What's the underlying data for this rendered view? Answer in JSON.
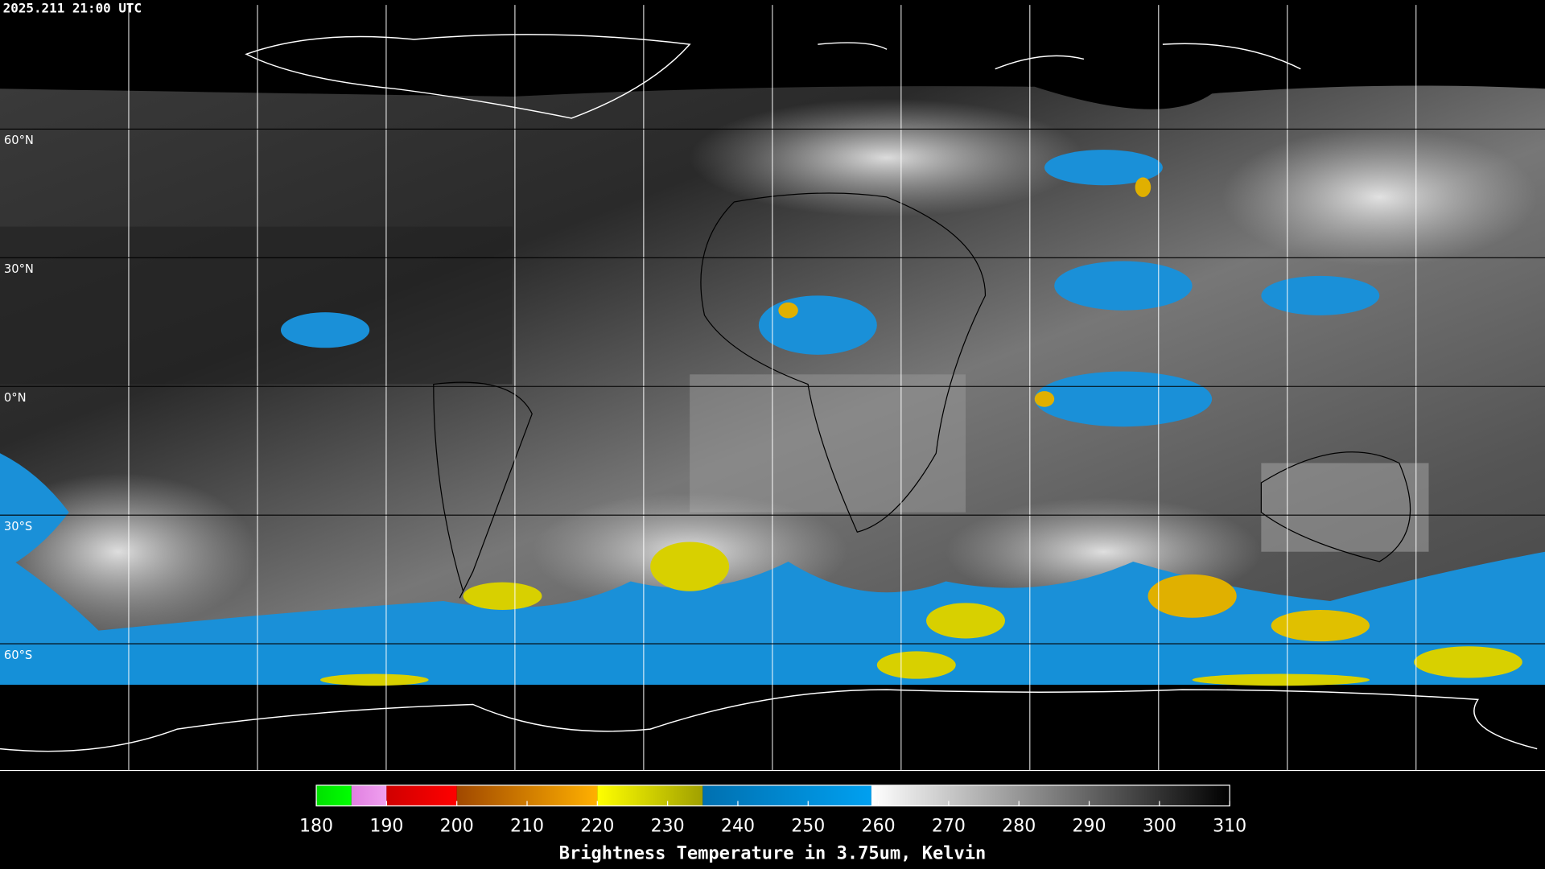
{
  "timestamp": "2025.211 21:00 UTC",
  "lat_labels": [
    "60°N",
    "30°N",
    "0°N",
    "30°S",
    "60°S"
  ],
  "colorbar": {
    "lim": [
      180,
      310
    ],
    "ticks": [
      180,
      190,
      200,
      210,
      220,
      230,
      240,
      250,
      260,
      270,
      280,
      290,
      300,
      310
    ],
    "label": "Brightness Temperature in 3.75um, Kelvin",
    "segments": [
      {
        "from": 180,
        "to": 185,
        "colors": [
          "#00e000",
          "#00ff00"
        ]
      },
      {
        "from": 185,
        "to": 190,
        "colors": [
          "#e080e0",
          "#f0a0f0"
        ]
      },
      {
        "from": 190,
        "to": 200,
        "colors": [
          "#d00000",
          "#ff0000"
        ]
      },
      {
        "from": 200,
        "to": 220,
        "colors": [
          "#a04800",
          "#ffb000"
        ]
      },
      {
        "from": 220,
        "to": 235,
        "colors": [
          "#ffff00",
          "#a0a000"
        ]
      },
      {
        "from": 235,
        "to": 259,
        "colors": [
          "#0070b0",
          "#00a0f0"
        ]
      },
      {
        "from": 259,
        "to": 310,
        "colors": [
          "#ffffff",
          "#000000"
        ]
      }
    ]
  }
}
